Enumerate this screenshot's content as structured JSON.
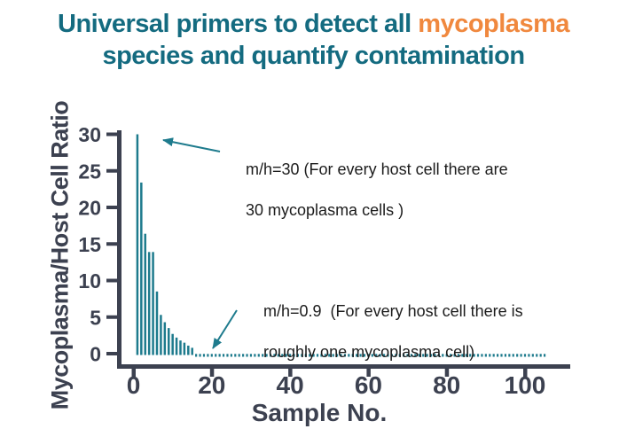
{
  "title": {
    "part1": "Universal primers to detect all ",
    "highlight": "mycoplasma",
    "part2": "species and quantify contamination",
    "color": "#146b80",
    "highlight_color": "#f0883e"
  },
  "annotations": [
    {
      "line1": "m/h=30 (For every host cell there are",
      "line2": "30 mycoplasma cells )",
      "points_to": "tallest bar at sample 1 (ratio 30)"
    },
    {
      "line1": "m/h=0.9  (For every host cell there is",
      "line2": "roughly one mycoplasma cell)",
      "points_to": "dotted low-ratio tail near sample 20"
    }
  ],
  "chart_data": {
    "type": "bar",
    "title": "",
    "xlabel": "Sample No.",
    "ylabel": "Mycoplasma/Host Cell Ratio",
    "x_ticks": [
      0,
      20,
      40,
      60,
      80,
      100
    ],
    "y_ticks": [
      0,
      5,
      10,
      15,
      20,
      25,
      30
    ],
    "xlim": [
      0,
      112
    ],
    "ylim": [
      0,
      30
    ],
    "grid": false,
    "legend": false,
    "bar_color": "#1e7b8d",
    "axis_color": "#3c4150",
    "samples": [
      1,
      2,
      3,
      4,
      5,
      6,
      7,
      8,
      9,
      10,
      11,
      12,
      13,
      14,
      15
    ],
    "values": [
      30,
      23.4,
      16.4,
      13.9,
      13.9,
      8.5,
      5.3,
      4.3,
      3.5,
      2.7,
      2.2,
      1.8,
      1.5,
      1.1,
      0.8
    ],
    "tail": {
      "sample_start": 16,
      "sample_end": 105,
      "approx_value": 0.3,
      "style": "dotted"
    }
  }
}
